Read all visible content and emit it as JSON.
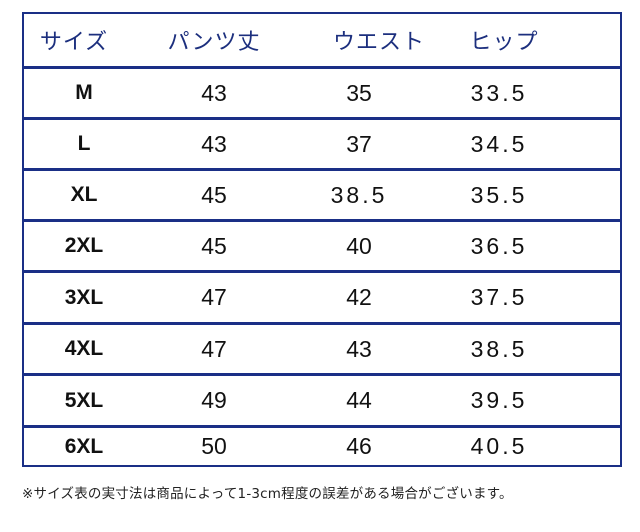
{
  "table": {
    "headers": [
      "サイズ",
      "パンツ丈",
      "ウエスト",
      "ヒップ"
    ],
    "rows": [
      {
        "size": "M",
        "length": "43",
        "waist": "35",
        "hip": "33.5"
      },
      {
        "size": "L",
        "length": "43",
        "waist": "37",
        "hip": "34.5"
      },
      {
        "size": "XL",
        "length": "45",
        "waist": "38.5",
        "hip": "35.5"
      },
      {
        "size": "2XL",
        "length": "45",
        "waist": "40",
        "hip": "36.5"
      },
      {
        "size": "3XL",
        "length": "47",
        "waist": "42",
        "hip": "37.5"
      },
      {
        "size": "4XL",
        "length": "47",
        "waist": "43",
        "hip": "38.5"
      },
      {
        "size": "5XL",
        "length": "49",
        "waist": "44",
        "hip": "39.5"
      },
      {
        "size": "6XL",
        "length": "50",
        "waist": "46",
        "hip": "40.5"
      }
    ]
  },
  "footnote": "※サイズ表の実寸法は商品によって1-3cm程度の誤差がある場合がございます。",
  "colors": {
    "border": "#1a2f86",
    "header_text": "#1c2f7e",
    "body_text": "#111111"
  }
}
